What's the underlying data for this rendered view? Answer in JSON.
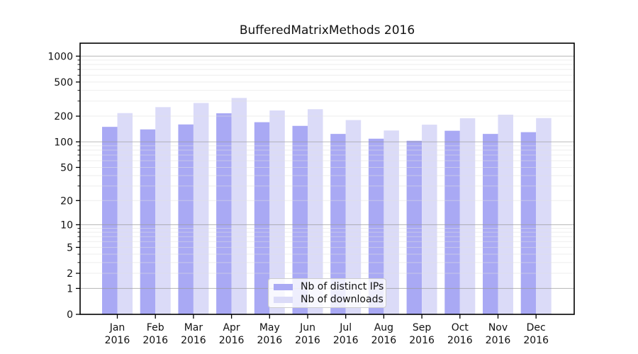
{
  "chart_data": {
    "type": "bar",
    "title": "BufferedMatrixMethods 2016",
    "categories": [
      "Jan 2016",
      "Feb 2016",
      "Mar 2016",
      "Apr 2016",
      "May 2016",
      "Jun 2016",
      "Jul 2016",
      "Aug 2016",
      "Sep 2016",
      "Oct 2016",
      "Nov 2016",
      "Dec 2016"
    ],
    "series": [
      {
        "name": "Nb of distinct IPs",
        "color": "#a9a9f4",
        "values": [
          150,
          140,
          160,
          216,
          170,
          154,
          124,
          109,
          103,
          135,
          124,
          130
        ]
      },
      {
        "name": "Nb of downloads",
        "color": "#dbdbf8",
        "values": [
          217,
          255,
          285,
          326,
          233,
          241,
          180,
          136,
          159,
          189,
          208,
          190
        ]
      }
    ],
    "yscale": "log1p",
    "yticks": [
      0,
      1,
      2,
      5,
      10,
      20,
      50,
      100,
      200,
      500,
      1000
    ],
    "ylim": [
      0,
      1415
    ],
    "grid": true,
    "legend_position": "lower center",
    "colors": {
      "major_grid": "#9a9a9a",
      "minor_grid": "#e0e0e0",
      "axis": "#000000",
      "background": "#ffffff",
      "legend_border": "#cccccc"
    }
  }
}
